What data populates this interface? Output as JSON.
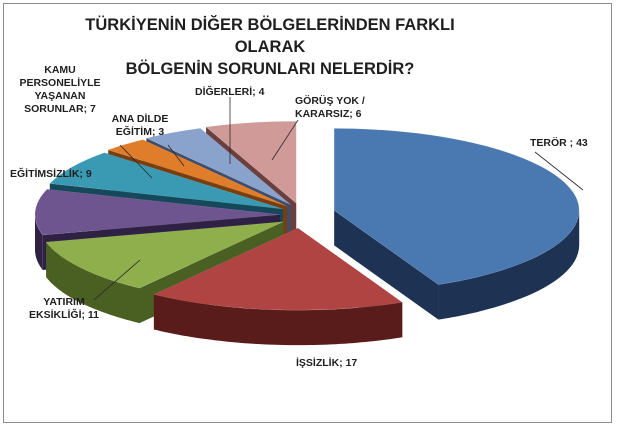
{
  "chart_data": {
    "type": "pie",
    "title_lines": [
      "TÜRKİYENİN DİĞER BÖLGELERİNDEN FARKLI OLARAK",
      "BÖLGENİN SORUNLARI NELERDİR?"
    ],
    "slices": [
      {
        "label": "TERÖR",
        "value": 43,
        "label_lines": [
          "TERÖR ; 43"
        ],
        "top": "#4a78b0",
        "side": "#1e3354"
      },
      {
        "label": "İŞSİZLİK",
        "value": 17,
        "label_lines": [
          "İŞSİZLİK; 17"
        ],
        "top": "#b04442",
        "side": "#5a1c1b"
      },
      {
        "label": "YATIRIM EKSİKLİĞİ",
        "value": 11,
        "label_lines": [
          "YATIRIM",
          "EKSİKLİĞİ; 11"
        ],
        "top": "#8faf4c",
        "side": "#4a5f22"
      },
      {
        "label": "EĞİTİMSİZLİK",
        "value": 9,
        "label_lines": [
          "EĞİTİMSİZLİK; 9"
        ],
        "top": "#6f5590",
        "side": "#2e2143"
      },
      {
        "label": "KAMU PERSONELİYLE YAŞANAN SORUNLAR",
        "value": 7,
        "label_lines": [
          "KAMU",
          "PERSONELİYLE",
          "YAŞANAN",
          "SORUNLAR; 7"
        ],
        "top": "#3a9ab4",
        "side": "#15485a"
      },
      {
        "label": "ANA DİLDE EĞİTİM",
        "value": 3,
        "label_lines": [
          "ANA DİLDE",
          "EĞİTİM; 3"
        ],
        "top": "#e07d2a",
        "side": "#7a3d0d"
      },
      {
        "label": "DİĞERLERİ",
        "value": 4,
        "label_lines": [
          "DİĞERLERİ; 4"
        ],
        "top": "#8aa3cc",
        "side": "#3d4d6b"
      },
      {
        "label": "GÖRÜŞ YOK / KARARSIZ",
        "value": 6,
        "label_lines": [
          "GÖRÜŞ YOK /",
          "KARARSIZ; 6"
        ],
        "top": "#d09a98",
        "side": "#6b3f3e"
      }
    ],
    "exploded": true,
    "legend": "none"
  }
}
